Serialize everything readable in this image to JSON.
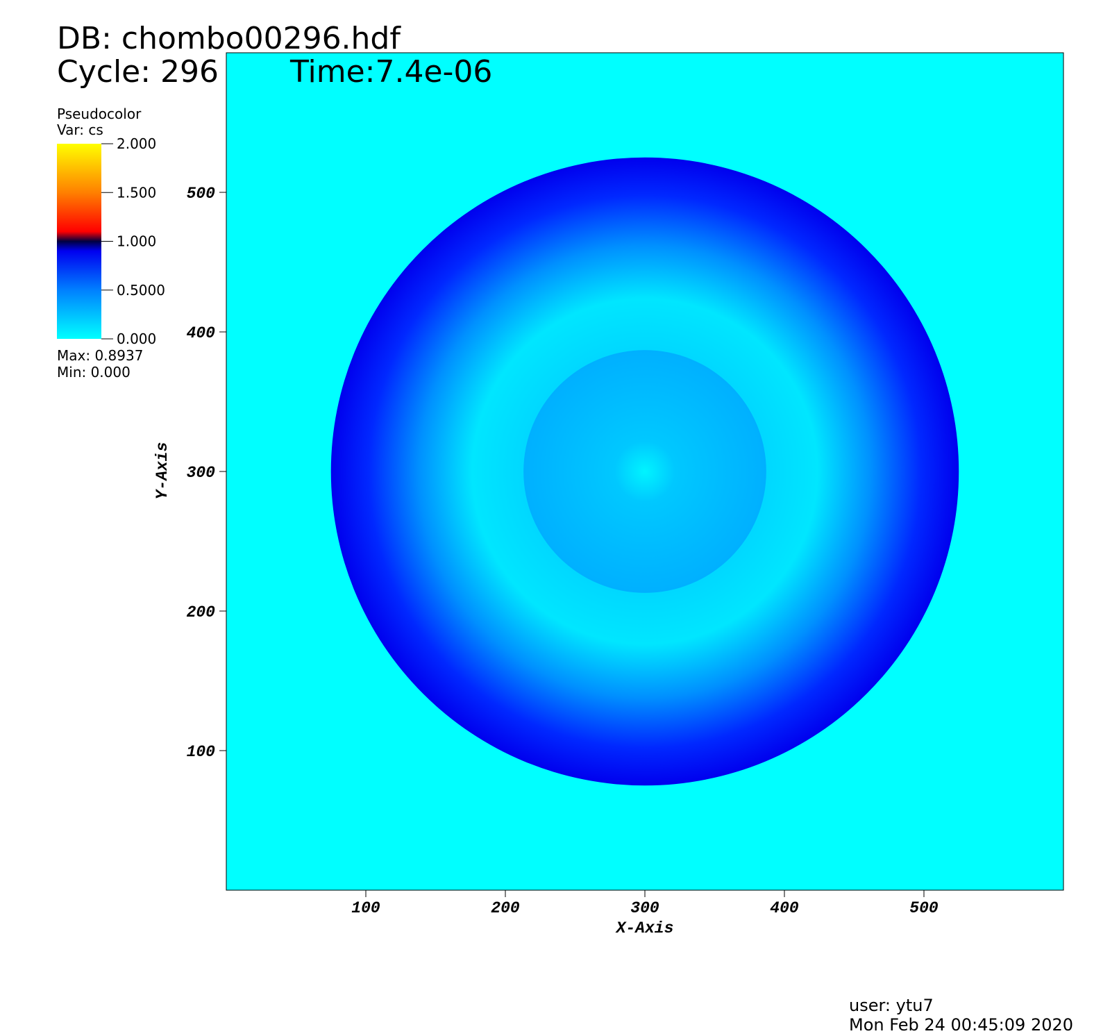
{
  "chart_data": {
    "type": "pseudocolor",
    "title": "DB: chombo00296.hdf",
    "cycle": "Cycle: 296",
    "time": "Time:7.4e-06",
    "x_label": "X-Axis",
    "y_label": "Y-Axis",
    "xlim": [
      0,
      600
    ],
    "ylim": [
      0,
      600
    ],
    "xticks": [
      100,
      200,
      300,
      400,
      500
    ],
    "yticks": [
      100,
      200,
      300,
      400,
      500
    ],
    "legend": {
      "title": "Pseudocolor",
      "variable": "Var: cs",
      "lim": [
        0,
        2
      ],
      "ticks": [
        {
          "value": 2,
          "label": "2.000"
        },
        {
          "value": 1.5,
          "label": "1.500"
        },
        {
          "value": 1,
          "label": "1.000"
        },
        {
          "value": 0.5,
          "label": "0.5000"
        },
        {
          "value": 0,
          "label": "0.000"
        }
      ],
      "max": "Max:  0.8937",
      "min": "Min:  0.000"
    },
    "user": "user: ytu7",
    "date": "Mon Feb 24 00:45:09 2020"
  }
}
